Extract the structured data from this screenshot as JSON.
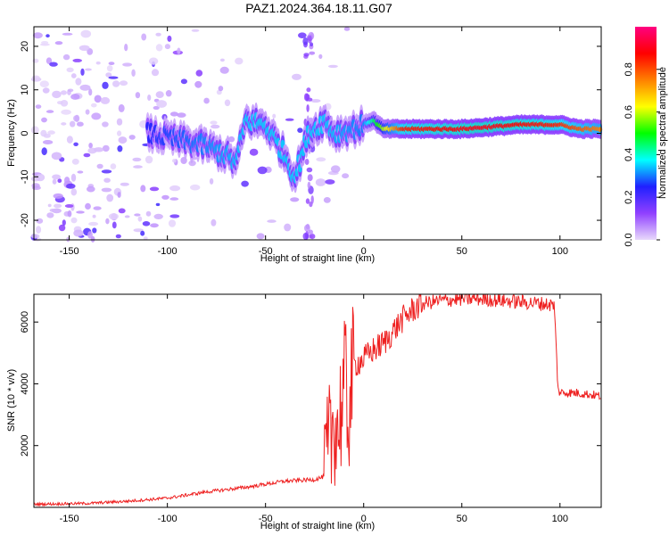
{
  "title": "PAZ1.2024.364.18.11.G07",
  "chart_data": [
    {
      "type": "heatmap",
      "xlabel": "Height of straight line (km)",
      "ylabel": "Frequency (Hz)",
      "xlim": [
        -168,
        121
      ],
      "ylim": [
        -24.5,
        24.5
      ],
      "xticks": [
        -150,
        -100,
        -50,
        0,
        50,
        100
      ],
      "yticks": [
        -20,
        -10,
        0,
        10,
        20
      ],
      "colorbar": {
        "label": "Normalized spectral amplitude",
        "range": [
          0,
          1
        ],
        "ticks": [
          0.0,
          0.2,
          0.4,
          0.6,
          0.8
        ],
        "colormap": [
          "#e8d9fb",
          "#9040ff",
          "#2020ff",
          "#00ffff",
          "#00ff00",
          "#ffff00",
          "#ff8000",
          "#ff0000",
          "#ff0080"
        ]
      },
      "ridge": [
        {
          "x": -110,
          "y": 0
        },
        {
          "x": -100,
          "y": -1
        },
        {
          "x": -90,
          "y": -2
        },
        {
          "x": -80,
          "y": -3
        },
        {
          "x": -70,
          "y": -5
        },
        {
          "x": -65,
          "y": -7
        },
        {
          "x": -60,
          "y": 3
        },
        {
          "x": -50,
          "y": 2
        },
        {
          "x": -40,
          "y": -5
        },
        {
          "x": -35,
          "y": -10
        },
        {
          "x": -28,
          "y": 0
        },
        {
          "x": -20,
          "y": 3
        },
        {
          "x": -15,
          "y": 0
        },
        {
          "x": -5,
          "y": 1
        },
        {
          "x": 5,
          "y": 3
        },
        {
          "x": 10,
          "y": 1
        },
        {
          "x": 50,
          "y": 1
        },
        {
          "x": 80,
          "y": 2
        },
        {
          "x": 100,
          "y": 2
        },
        {
          "x": 110,
          "y": 1
        },
        {
          "x": 121,
          "y": 1
        }
      ],
      "ridge_amplitude": [
        {
          "x": -110,
          "a": 0.25
        },
        {
          "x": -60,
          "a": 0.35
        },
        {
          "x": -20,
          "a": 0.35
        },
        {
          "x": 0,
          "a": 0.3
        },
        {
          "x": 20,
          "a": 0.85
        },
        {
          "x": 60,
          "a": 0.9
        },
        {
          "x": 98,
          "a": 0.85
        },
        {
          "x": 121,
          "a": 0.75
        }
      ]
    },
    {
      "type": "line",
      "xlabel": "Height of straight line (km)",
      "ylabel": "SNR (10 * v/v)",
      "xlim": [
        -168,
        121
      ],
      "ylim": [
        0,
        6900
      ],
      "xticks": [
        -150,
        -100,
        -50,
        0,
        50,
        100
      ],
      "yticks": [
        2000,
        4000,
        6000
      ],
      "color": "#ee2020",
      "series": [
        {
          "x": [
            -168,
            -140,
            -120,
            -100,
            -80,
            -60,
            -40,
            -25,
            -20,
            -17,
            -15,
            -13,
            -11,
            -9,
            -8,
            -5,
            0,
            5,
            10,
            15,
            20,
            25,
            30,
            40,
            50,
            60,
            70,
            80,
            90,
            97,
            98,
            99,
            100,
            110,
            121
          ],
          "y": [
            100,
            130,
            200,
            300,
            500,
            650,
            850,
            900,
            1000,
            2000,
            3000,
            2500,
            3500,
            4000,
            3000,
            4600,
            4800,
            5100,
            5300,
            5700,
            6100,
            6400,
            6600,
            6700,
            6750,
            6750,
            6700,
            6650,
            6600,
            6550,
            5300,
            3800,
            3720,
            3700,
            3600
          ]
        }
      ]
    }
  ]
}
